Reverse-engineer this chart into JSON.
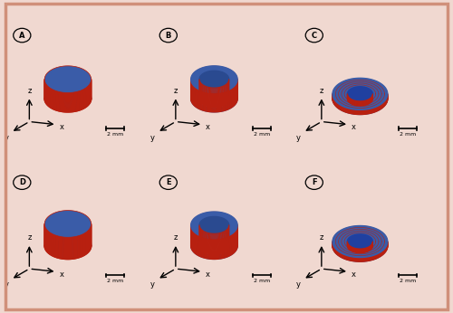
{
  "background_color": "#f0d8d0",
  "panel_bg": "#ffffff",
  "panel_labels": [
    "A",
    "B",
    "C",
    "D",
    "E",
    "F"
  ],
  "blue_color": "#3a5ca8",
  "red_color": "#b82010",
  "axis_color": "#000000",
  "scale_bar_label": "2 mm",
  "figsize": [
    5.0,
    3.46
  ],
  "dpi": 100
}
